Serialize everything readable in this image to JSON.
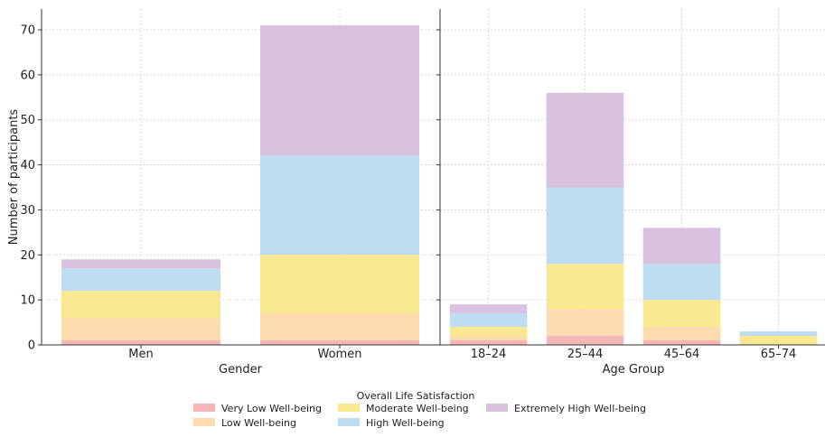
{
  "chart_data": [
    {
      "type": "bar",
      "stacked": true,
      "xlabel": "Gender",
      "ylabel": "Number of participants",
      "categories": [
        "Men",
        "Women"
      ],
      "ylim": [
        0,
        75
      ],
      "yticks": [
        0,
        10,
        20,
        30,
        40,
        50,
        60,
        70
      ],
      "series": [
        {
          "name": "Very Low Well-being",
          "values": [
            1,
            1
          ]
        },
        {
          "name": "Low Well-being",
          "values": [
            5,
            6
          ]
        },
        {
          "name": "Moderate Well-being",
          "values": [
            6,
            13
          ]
        },
        {
          "name": "High Well-being",
          "values": [
            5,
            22
          ]
        },
        {
          "name": "Extremely High Well-being",
          "values": [
            2,
            29
          ]
        }
      ]
    },
    {
      "type": "bar",
      "stacked": true,
      "xlabel": "Age Group",
      "ylabel": "",
      "categories": [
        "18–24",
        "25–44",
        "45–64",
        "65–74"
      ],
      "ylim": [
        0,
        75
      ],
      "yticks": [
        0,
        10,
        20,
        30,
        40,
        50,
        60,
        70
      ],
      "series": [
        {
          "name": "Very Low Well-being",
          "values": [
            1,
            2,
            1,
            0
          ]
        },
        {
          "name": "Low Well-being",
          "values": [
            1,
            6,
            3,
            0
          ]
        },
        {
          "name": "Moderate Well-being",
          "values": [
            2,
            10,
            6,
            2
          ]
        },
        {
          "name": "High Well-being",
          "values": [
            3,
            17,
            8,
            1
          ]
        },
        {
          "name": "Extremely High Well-being",
          "values": [
            2,
            21,
            8,
            0
          ]
        }
      ]
    }
  ],
  "legend": {
    "title": "Overall Life Satisfaction",
    "placement": "bottom-center",
    "items": [
      {
        "label": "Very Low Well-being",
        "color": "#f4b6b6"
      },
      {
        "label": "Low Well-being",
        "color": "#fcdcae"
      },
      {
        "label": "Moderate Well-being",
        "color": "#fae891"
      },
      {
        "label": "High Well-being",
        "color": "#bfddf2"
      },
      {
        "label": "Extremely High Well-being",
        "color": "#d9c2df"
      }
    ]
  },
  "grid": true
}
